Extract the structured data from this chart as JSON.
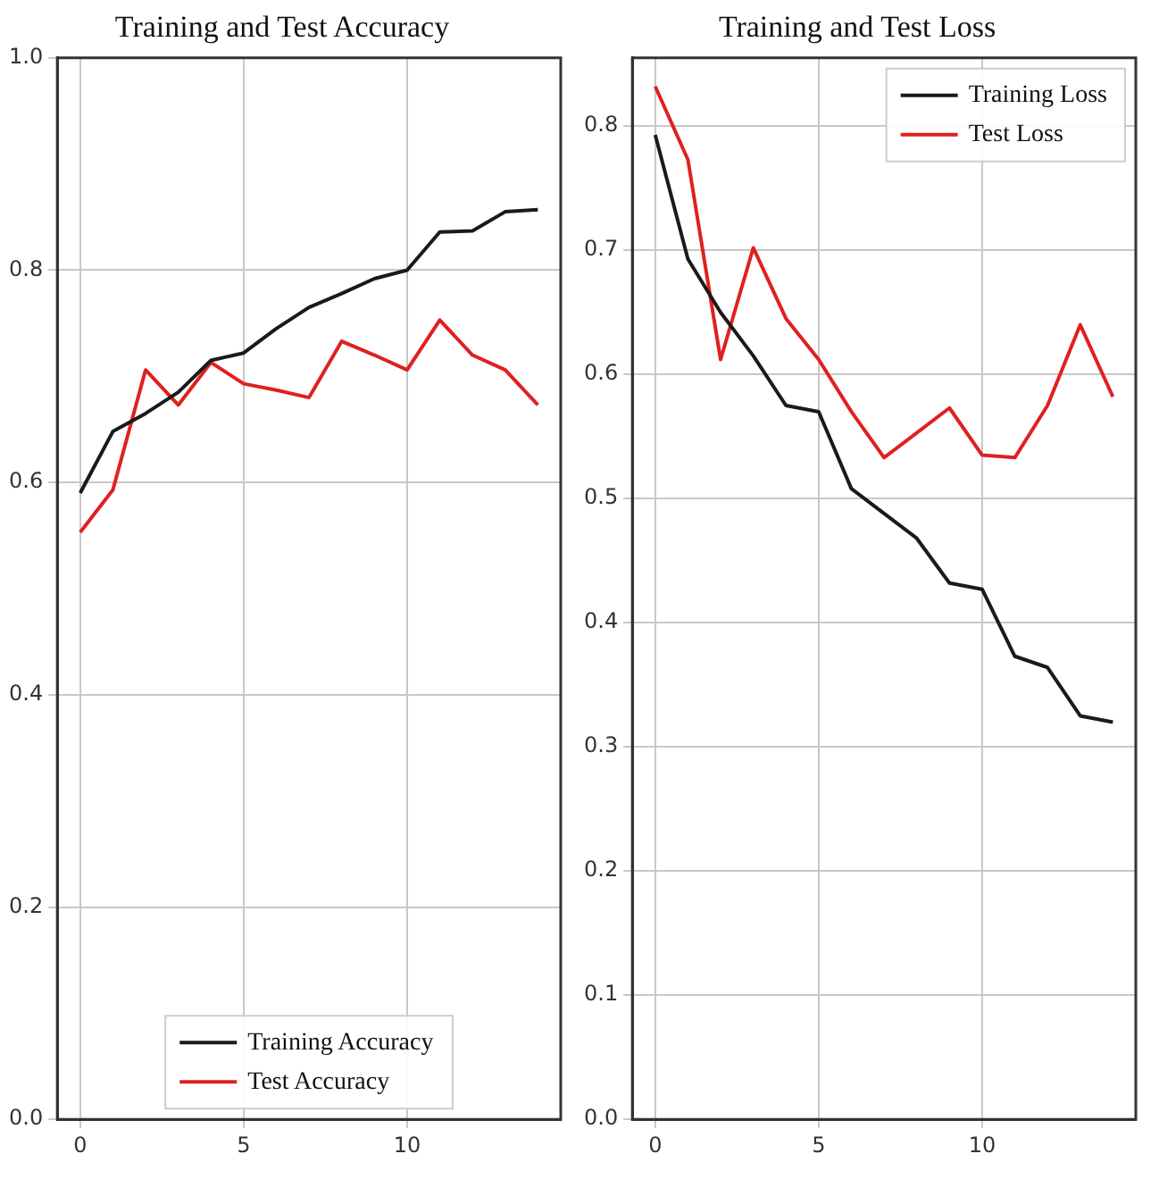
{
  "chart_data": [
    {
      "type": "line",
      "title": "Training and Test Accuracy",
      "x": [
        0,
        1,
        2,
        3,
        4,
        5,
        6,
        7,
        8,
        9,
        10,
        11,
        12,
        13,
        14
      ],
      "series": [
        {
          "name": "Training Accuracy",
          "color": "#1a1a1a",
          "values": [
            0.59,
            0.648,
            0.665,
            0.685,
            0.715,
            0.722,
            0.745,
            0.765,
            0.778,
            0.792,
            0.8,
            0.836,
            0.837,
            0.855,
            0.857
          ]
        },
        {
          "name": "Test Accuracy",
          "color": "#e02020",
          "values": [
            0.553,
            0.593,
            0.706,
            0.673,
            0.713,
            0.693,
            0.687,
            0.68,
            0.733,
            0.72,
            0.706,
            0.753,
            0.72,
            0.706,
            0.673
          ]
        }
      ],
      "xlim": [
        -0.7,
        14.7
      ],
      "xticks": [
        0,
        5,
        10
      ],
      "ylim": [
        0,
        1
      ],
      "yticks": [
        {
          "value": 0,
          "label": "0.0"
        },
        {
          "value": 0.2,
          "label": "0.2"
        },
        {
          "value": 0.4,
          "label": "0.4"
        },
        {
          "value": 0.6,
          "label": "0.6"
        },
        {
          "value": 0.8,
          "label": "0.8"
        },
        {
          "value": 1,
          "label": "1.0"
        }
      ],
      "grid": true,
      "legend": "bottom",
      "marker": "none",
      "line_style": "solid"
    },
    {
      "type": "line",
      "title": "Training and Test Loss",
      "x": [
        0,
        1,
        2,
        3,
        4,
        5,
        6,
        7,
        8,
        9,
        10,
        11,
        12,
        13,
        14
      ],
      "series": [
        {
          "name": "Training Loss",
          "color": "#1a1a1a",
          "values": [
            0.793,
            0.693,
            0.65,
            0.615,
            0.575,
            0.57,
            0.508,
            0.488,
            0.468,
            0.432,
            0.427,
            0.373,
            0.364,
            0.325,
            0.32
          ]
        },
        {
          "name": "Test Loss",
          "color": "#e02020",
          "values": [
            0.832,
            0.773,
            0.612,
            0.702,
            0.645,
            0.612,
            0.57,
            0.533,
            0.553,
            0.573,
            0.535,
            0.533,
            0.575,
            0.64,
            0.582
          ]
        }
      ],
      "xlim": [
        -0.7,
        14.7
      ],
      "xticks": [
        0,
        5,
        10
      ],
      "ylim": [
        0,
        0.855
      ],
      "yticks": [
        {
          "value": 0,
          "label": "0.0"
        },
        {
          "value": 0.1,
          "label": "0.1"
        },
        {
          "value": 0.2,
          "label": "0.2"
        },
        {
          "value": 0.3,
          "label": "0.3"
        },
        {
          "value": 0.4,
          "label": "0.4"
        },
        {
          "value": 0.5,
          "label": "0.5"
        },
        {
          "value": 0.6,
          "label": "0.6"
        },
        {
          "value": 0.7,
          "label": "0.7"
        },
        {
          "value": 0.8,
          "label": "0.8"
        }
      ],
      "grid": true,
      "legend": "top right",
      "marker": "none",
      "line_style": "solid"
    }
  ]
}
